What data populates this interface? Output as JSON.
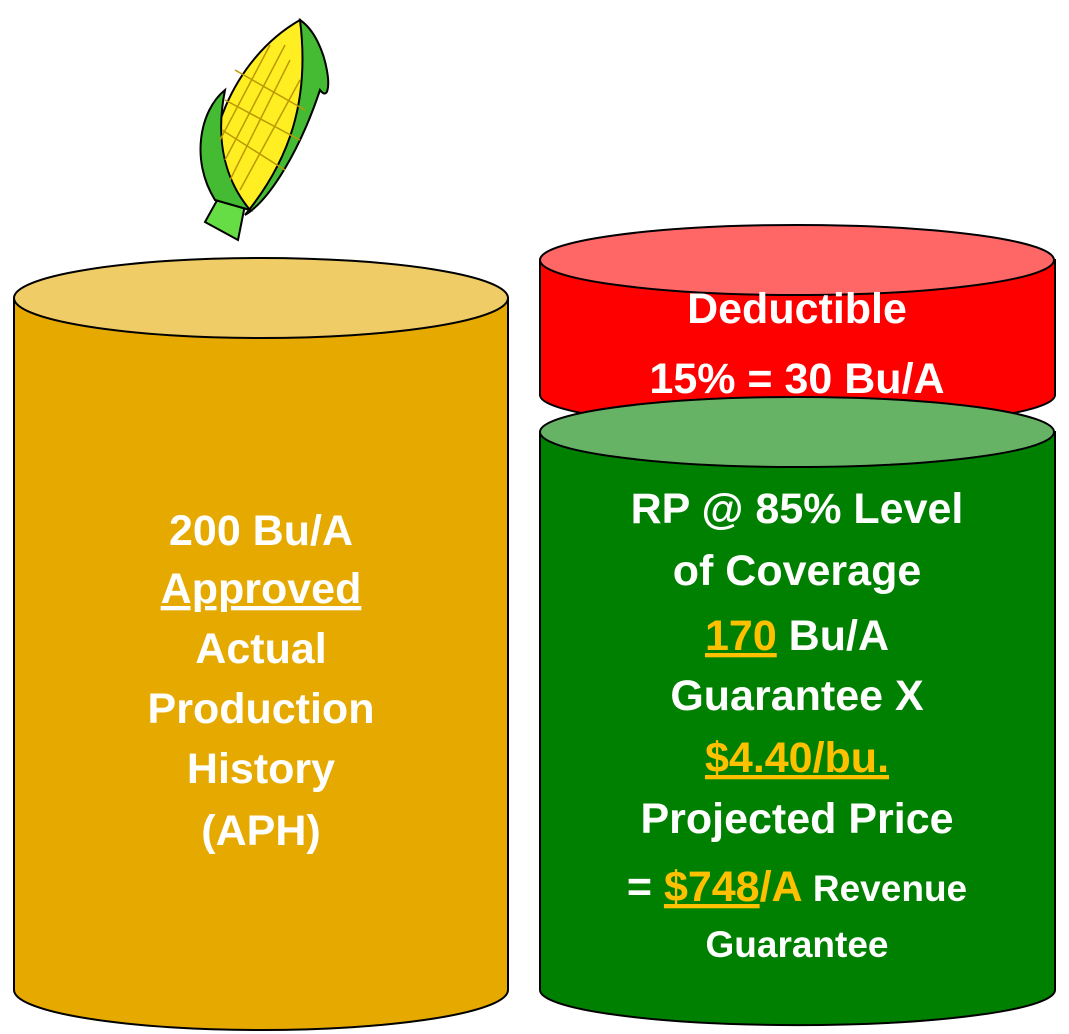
{
  "aph_cylinder": {
    "lines": [
      [
        "200 Bu/A"
      ],
      [
        "Approved"
      ],
      [
        "Actual"
      ],
      [
        "Production"
      ],
      [
        "History"
      ],
      [
        "(APH)"
      ]
    ]
  },
  "deductible_cylinder": {
    "lines": [
      [
        "Deductible"
      ],
      [
        "15% = 30 Bu/A"
      ]
    ]
  },
  "coverage_cylinder": {
    "lines": [
      [
        "RP @ 85% Level"
      ],
      [
        "of Coverage"
      ],
      [
        "170",
        " Bu/A"
      ],
      [
        "Guarantee X"
      ],
      [
        "$4.40/bu."
      ],
      [
        "Projected Price"
      ],
      [
        "= ",
        "$748",
        "/A",
        " Revenue"
      ],
      [
        "Guarantee"
      ]
    ]
  }
}
